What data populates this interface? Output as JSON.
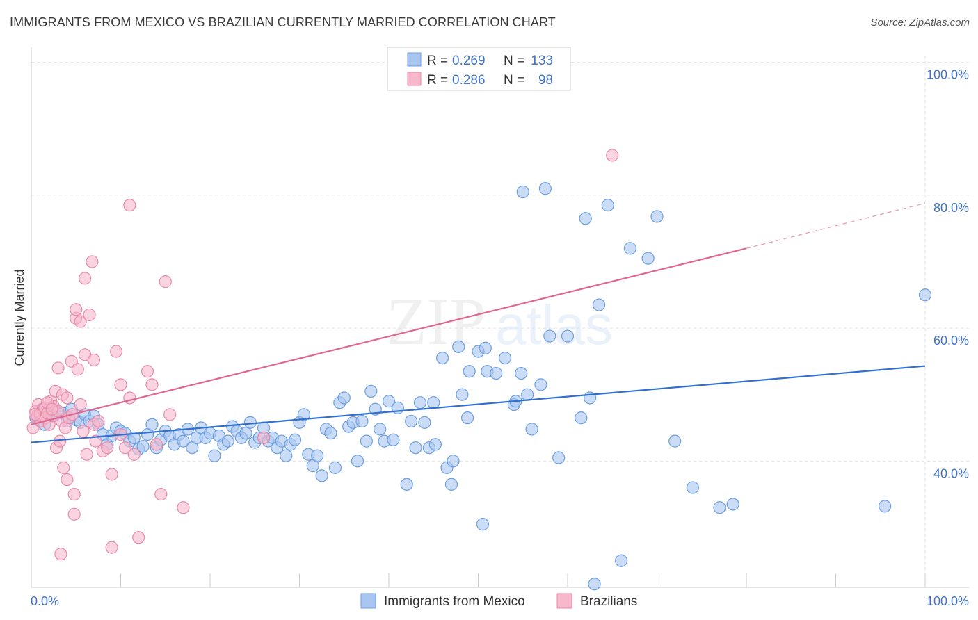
{
  "header": {
    "title": "IMMIGRANTS FROM MEXICO VS BRAZILIAN CURRENTLY MARRIED CORRELATION CHART",
    "source": "Source: ZipAtlas.com"
  },
  "watermark": {
    "text_zip": "ZIP",
    "text_atlas": "atlas"
  },
  "legend": {
    "r_label": "R =",
    "n_label": "N =",
    "entries": [
      {
        "r": "0.269",
        "n": "133",
        "color": "#a8c6f0",
        "stroke": "#6c9ee0"
      },
      {
        "r": "0.286",
        "n": "98",
        "color": "#f7b8cb",
        "stroke": "#e88aa8"
      }
    ]
  },
  "chart_data": {
    "type": "scatter",
    "title": "IMMIGRANTS FROM MEXICO VS BRAZILIAN CURRENTLY MARRIED CORRELATION CHART",
    "xlabel": "",
    "ylabel": "Currently Married",
    "x_ticks": [
      "0.0%",
      "100.0%"
    ],
    "y_ticks": [
      "40.0%",
      "60.0%",
      "80.0%",
      "100.0%"
    ],
    "xlim": [
      0,
      100
    ],
    "ylim": [
      21,
      101
    ],
    "grid": true,
    "legend_position": "top-center",
    "series": [
      {
        "name": "Immigrants from Mexico",
        "color": "#6c9ee0",
        "fill": "#a8c6f0",
        "trend": {
          "x": [
            0,
            100
          ],
          "y": [
            42.8,
            54.3
          ]
        },
        "points": [
          [
            0.5,
            46.5
          ],
          [
            0.8,
            47.5
          ],
          [
            1.0,
            46.0
          ],
          [
            1.2,
            47.8
          ],
          [
            1.5,
            45.5
          ],
          [
            2.0,
            47.0
          ],
          [
            2.2,
            48.0
          ],
          [
            2.5,
            46.8
          ],
          [
            3.0,
            47.5
          ],
          [
            3.5,
            47.2
          ],
          [
            4.0,
            46.0
          ],
          [
            4.2,
            46.5
          ],
          [
            4.5,
            47.8
          ],
          [
            5.0,
            46.2
          ],
          [
            5.5,
            45.8
          ],
          [
            6.0,
            47.0
          ],
          [
            6.5,
            46.0
          ],
          [
            7.0,
            46.8
          ],
          [
            7.5,
            45.5
          ],
          [
            8.0,
            44.0
          ],
          [
            8.5,
            42.5
          ],
          [
            9.0,
            43.8
          ],
          [
            9.5,
            45.0
          ],
          [
            10.0,
            44.5
          ],
          [
            10.5,
            44.2
          ],
          [
            11.0,
            43.0
          ],
          [
            11.5,
            43.5
          ],
          [
            12.0,
            41.8
          ],
          [
            12.5,
            42.2
          ],
          [
            13.0,
            44.0
          ],
          [
            13.5,
            45.5
          ],
          [
            14.0,
            42.0
          ],
          [
            14.5,
            43.2
          ],
          [
            15.0,
            44.5
          ],
          [
            15.5,
            43.8
          ],
          [
            16.0,
            42.5
          ],
          [
            16.5,
            44.0
          ],
          [
            17.0,
            43.0
          ],
          [
            17.5,
            44.8
          ],
          [
            18.0,
            42.0
          ],
          [
            18.5,
            43.5
          ],
          [
            19.0,
            45.0
          ],
          [
            19.5,
            43.5
          ],
          [
            20.0,
            44.2
          ],
          [
            20.5,
            40.8
          ],
          [
            21.0,
            43.8
          ],
          [
            21.5,
            42.5
          ],
          [
            22.0,
            43.0
          ],
          [
            22.5,
            45.2
          ],
          [
            23.0,
            44.5
          ],
          [
            23.5,
            43.5
          ],
          [
            24.0,
            44.2
          ],
          [
            24.5,
            45.8
          ],
          [
            25.0,
            42.8
          ],
          [
            25.5,
            43.5
          ],
          [
            26.0,
            45.0
          ],
          [
            26.5,
            43.0
          ],
          [
            27.0,
            43.5
          ],
          [
            27.5,
            42.0
          ],
          [
            28.0,
            43.0
          ],
          [
            28.5,
            40.8
          ],
          [
            29.0,
            42.5
          ],
          [
            29.5,
            43.2
          ],
          [
            30.0,
            45.8
          ],
          [
            30.5,
            47.0
          ],
          [
            31.0,
            41.0
          ],
          [
            31.5,
            39.3
          ],
          [
            32.0,
            40.8
          ],
          [
            32.5,
            37.8
          ],
          [
            33.0,
            44.8
          ],
          [
            33.5,
            44.2
          ],
          [
            34.0,
            39.0
          ],
          [
            34.5,
            48.8
          ],
          [
            35.0,
            49.5
          ],
          [
            35.5,
            45.2
          ],
          [
            36.0,
            45.8
          ],
          [
            36.5,
            40.0
          ],
          [
            37.0,
            46.0
          ],
          [
            37.5,
            43.0
          ],
          [
            38.0,
            50.5
          ],
          [
            38.5,
            47.8
          ],
          [
            39.0,
            44.8
          ],
          [
            39.5,
            43.0
          ],
          [
            40.0,
            49.0
          ],
          [
            40.5,
            43.2
          ],
          [
            41.0,
            48.0
          ],
          [
            42.0,
            36.5
          ],
          [
            42.5,
            46.0
          ],
          [
            43.0,
            42.0
          ],
          [
            43.5,
            48.8
          ],
          [
            44.0,
            45.8
          ],
          [
            44.5,
            42.0
          ],
          [
            45.0,
            48.8
          ],
          [
            45.2,
            42.5
          ],
          [
            46.0,
            55.5
          ],
          [
            46.5,
            39.0
          ],
          [
            47.0,
            36.5
          ],
          [
            47.2,
            40.0
          ],
          [
            47.8,
            57.2
          ],
          [
            48.2,
            50.0
          ],
          [
            48.8,
            46.5
          ],
          [
            49.0,
            53.5
          ],
          [
            50.0,
            56.5
          ],
          [
            50.5,
            30.5
          ],
          [
            50.8,
            57.0
          ],
          [
            51.0,
            53.5
          ],
          [
            52.0,
            53.2
          ],
          [
            53.0,
            55.5
          ],
          [
            54.0,
            48.5
          ],
          [
            54.2,
            49.0
          ],
          [
            54.8,
            53.2
          ],
          [
            55.5,
            50.0
          ],
          [
            55.0,
            80.5
          ],
          [
            56.0,
            44.8
          ],
          [
            57.0,
            51.5
          ],
          [
            57.5,
            81.0
          ],
          [
            58.0,
            58.8
          ],
          [
            59.0,
            40.5
          ],
          [
            60.0,
            58.8
          ],
          [
            61.5,
            46.5
          ],
          [
            62.0,
            76.5
          ],
          [
            62.5,
            49.5
          ],
          [
            63.5,
            63.5
          ],
          [
            64.5,
            78.5
          ],
          [
            66.0,
            25.0
          ],
          [
            67.0,
            72.0
          ],
          [
            69.0,
            70.5
          ],
          [
            70.0,
            76.8
          ],
          [
            72.0,
            43.0
          ],
          [
            74.0,
            36.0
          ],
          [
            77.0,
            33.0
          ],
          [
            78.5,
            33.5
          ],
          [
            95.5,
            33.2
          ],
          [
            100.0,
            65.0
          ],
          [
            63.0,
            21.5
          ]
        ]
      },
      {
        "name": "Brazilians",
        "color": "#e88aa8",
        "fill": "#f7b8cb",
        "trend": {
          "x": [
            0,
            80
          ],
          "y": [
            45.5,
            72.0
          ]
        },
        "trend_dashed": {
          "x": [
            80,
            100
          ],
          "y": [
            72.0,
            78.8
          ]
        },
        "points": [
          [
            0.2,
            45.0
          ],
          [
            0.5,
            47.5
          ],
          [
            0.7,
            46.8
          ],
          [
            0.8,
            48.5
          ],
          [
            1.0,
            47.0
          ],
          [
            1.1,
            46.0
          ],
          [
            1.3,
            47.8
          ],
          [
            1.5,
            48.0
          ],
          [
            1.6,
            46.5
          ],
          [
            1.8,
            47.2
          ],
          [
            2.0,
            45.5
          ],
          [
            2.2,
            49.0
          ],
          [
            2.4,
            46.8
          ],
          [
            2.5,
            48.2
          ],
          [
            2.7,
            50.5
          ],
          [
            2.8,
            42.0
          ],
          [
            3.0,
            47.5
          ],
          [
            3.0,
            54.0
          ],
          [
            3.2,
            43.0
          ],
          [
            3.4,
            46.0
          ],
          [
            3.5,
            50.0
          ],
          [
            3.6,
            39.0
          ],
          [
            3.8,
            45.0
          ],
          [
            4.0,
            49.5
          ],
          [
            4.0,
            37.2
          ],
          [
            4.2,
            46.5
          ],
          [
            4.5,
            55.0
          ],
          [
            4.6,
            47.0
          ],
          [
            4.8,
            35.0
          ],
          [
            4.8,
            32.0
          ],
          [
            5.0,
            61.5
          ],
          [
            5.0,
            62.8
          ],
          [
            5.2,
            53.8
          ],
          [
            5.5,
            61.0
          ],
          [
            5.5,
            48.5
          ],
          [
            5.8,
            44.5
          ],
          [
            6.0,
            67.5
          ],
          [
            6.0,
            56.0
          ],
          [
            6.2,
            41.0
          ],
          [
            6.5,
            62.0
          ],
          [
            6.8,
            70.0
          ],
          [
            7.0,
            55.2
          ],
          [
            7.0,
            45.5
          ],
          [
            7.2,
            43.0
          ],
          [
            7.5,
            46.0
          ],
          [
            8.0,
            41.5
          ],
          [
            8.5,
            42.0
          ],
          [
            9.0,
            38.0
          ],
          [
            9.0,
            27.0
          ],
          [
            9.5,
            56.5
          ],
          [
            10.0,
            51.5
          ],
          [
            10.0,
            44.0
          ],
          [
            10.5,
            42.0
          ],
          [
            11.0,
            49.5
          ],
          [
            11.0,
            78.5
          ],
          [
            11.5,
            41.0
          ],
          [
            12.0,
            28.5
          ],
          [
            13.0,
            53.5
          ],
          [
            13.5,
            51.5
          ],
          [
            14.0,
            42.5
          ],
          [
            14.5,
            35.0
          ],
          [
            15.0,
            67.0
          ],
          [
            15.5,
            47.0
          ],
          [
            17.0,
            33.0
          ],
          [
            26.0,
            43.5
          ],
          [
            65.0,
            86.0
          ],
          [
            3.3,
            26.0
          ],
          [
            1.8,
            48.8
          ],
          [
            2.3,
            47.8
          ],
          [
            0.4,
            47.0
          ]
        ]
      }
    ]
  }
}
